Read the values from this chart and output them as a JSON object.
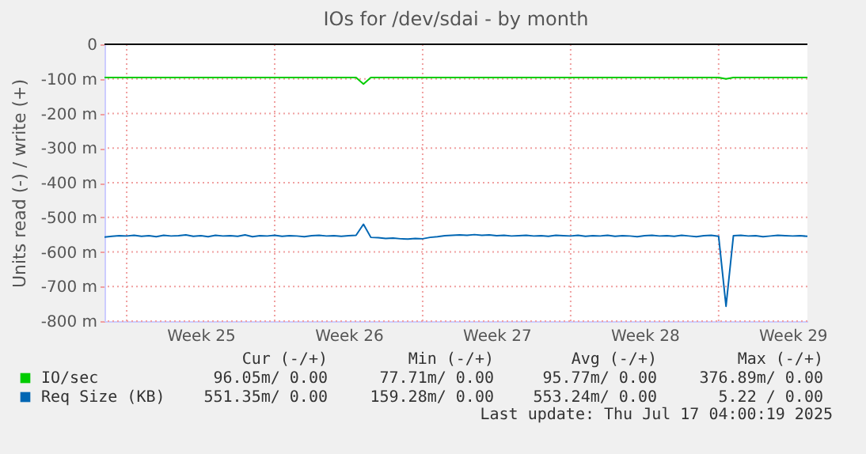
{
  "chart_data": {
    "type": "line",
    "title": "IOs for /dev/sdai - by month",
    "ylabel": "Units read (-) / write (+)",
    "categories": [
      null,
      null,
      null,
      null,
      null,
      null,
      null,
      null,
      null,
      null,
      null,
      null,
      null,
      "Week 25",
      null,
      null,
      null,
      null,
      null,
      null,
      null,
      null,
      null,
      null,
      null,
      null,
      null,
      null,
      null,
      null,
      null,
      null,
      null,
      "Week 26",
      null,
      null,
      null,
      null,
      null,
      null,
      null,
      null,
      null,
      null,
      null,
      null,
      null,
      null,
      null,
      null,
      null,
      null,
      null,
      "Week 27",
      null,
      null,
      null,
      null,
      null,
      null,
      null,
      null,
      null,
      null,
      null,
      null,
      null,
      null,
      null,
      null,
      null,
      null,
      null,
      "Week 28",
      null,
      null,
      null,
      null,
      null,
      null,
      null,
      null,
      null,
      null,
      null,
      null,
      null,
      null,
      null,
      null,
      null,
      null,
      null,
      "Week 29",
      null,
      null
    ],
    "ylim": [
      -800,
      0
    ],
    "yticks": [
      0,
      {
        "value": -100,
        "label": "-100 m"
      },
      {
        "value": -200,
        "label": "-200 m"
      },
      {
        "value": -300,
        "label": "-300 m"
      },
      {
        "value": -400,
        "label": "-400 m"
      },
      {
        "value": -500,
        "label": "-500 m"
      },
      {
        "value": -600,
        "label": "-600 m"
      },
      {
        "value": -700,
        "label": "-700 m"
      },
      {
        "value": -800,
        "label": "-800 m"
      }
    ],
    "grid": true,
    "legend": "bottom left",
    "ref_lines": [
      {
        "axis": "y",
        "value": 0,
        "color": "#000000"
      }
    ],
    "series": [
      {
        "name": "IO/sec",
        "color": "#00cc00",
        "values": [
          -96,
          -96,
          -96,
          -96,
          -96,
          -96,
          -96,
          -96,
          -96,
          -96,
          -96,
          -96,
          -96,
          -96,
          -96,
          -96,
          -96,
          -96,
          -96,
          -96,
          -96,
          -96,
          -96,
          -96,
          -96,
          -96,
          -96,
          -96,
          -96,
          -96,
          -96,
          -96,
          -96,
          -96,
          -96,
          -115,
          -96,
          -96,
          -96,
          -96,
          -96,
          -96,
          -96,
          -96,
          -96,
          -96,
          -96,
          -96,
          -96,
          -96,
          -96,
          -96,
          -96,
          -96,
          -96,
          -96,
          -96,
          -96,
          -96,
          -96,
          -96,
          -96,
          -96,
          -96,
          -96,
          -96,
          -96,
          -96,
          -96,
          -96,
          -96,
          -96,
          -96,
          -96,
          -96,
          -96,
          -96,
          -96,
          -96,
          -96,
          -96,
          -96,
          -96,
          -96,
          -100,
          -96,
          -96,
          -96,
          -96,
          -96,
          -96,
          -96,
          -96,
          -96,
          -96,
          -96
        ]
      },
      {
        "name": "Req Size (KB)",
        "color": "#0066b3",
        "values": [
          -557,
          -555,
          -553,
          -554,
          -552,
          -555,
          -553,
          -556,
          -552,
          -554,
          -553,
          -551,
          -555,
          -553,
          -556,
          -552,
          -554,
          -553,
          -555,
          -551,
          -556,
          -553,
          -554,
          -552,
          -555,
          -553,
          -554,
          -556,
          -553,
          -552,
          -554,
          -553,
          -555,
          -553,
          -552,
          -520,
          -558,
          -559,
          -561,
          -560,
          -562,
          -563,
          -561,
          -562,
          -558,
          -556,
          -553,
          -552,
          -551,
          -552,
          -550,
          -552,
          -551,
          -553,
          -552,
          -554,
          -553,
          -552,
          -554,
          -553,
          -555,
          -552,
          -553,
          -554,
          -552,
          -555,
          -553,
          -554,
          -552,
          -555,
          -553,
          -554,
          -556,
          -553,
          -552,
          -554,
          -553,
          -555,
          -552,
          -554,
          -556,
          -553,
          -552,
          -555,
          -757,
          -553,
          -552,
          -554,
          -553,
          -556,
          -554,
          -552,
          -553,
          -554,
          -553,
          -555
        ]
      }
    ],
    "annotations": [
      "Cur (-/+)",
      "Min (-/+)",
      "Avg (-/+)",
      "Max (-/+)",
      "96.05m/  0.00",
      "77.71m/  0.00",
      "95.77m/  0.00",
      "376.89m/  0.00",
      "551.35m/  0.00",
      "159.28m/  0.00",
      "553.24m/  0.00",
      "5.22 /  0.00",
      "Last update: Thu Jul 17 04:00:19 2025"
    ]
  }
}
